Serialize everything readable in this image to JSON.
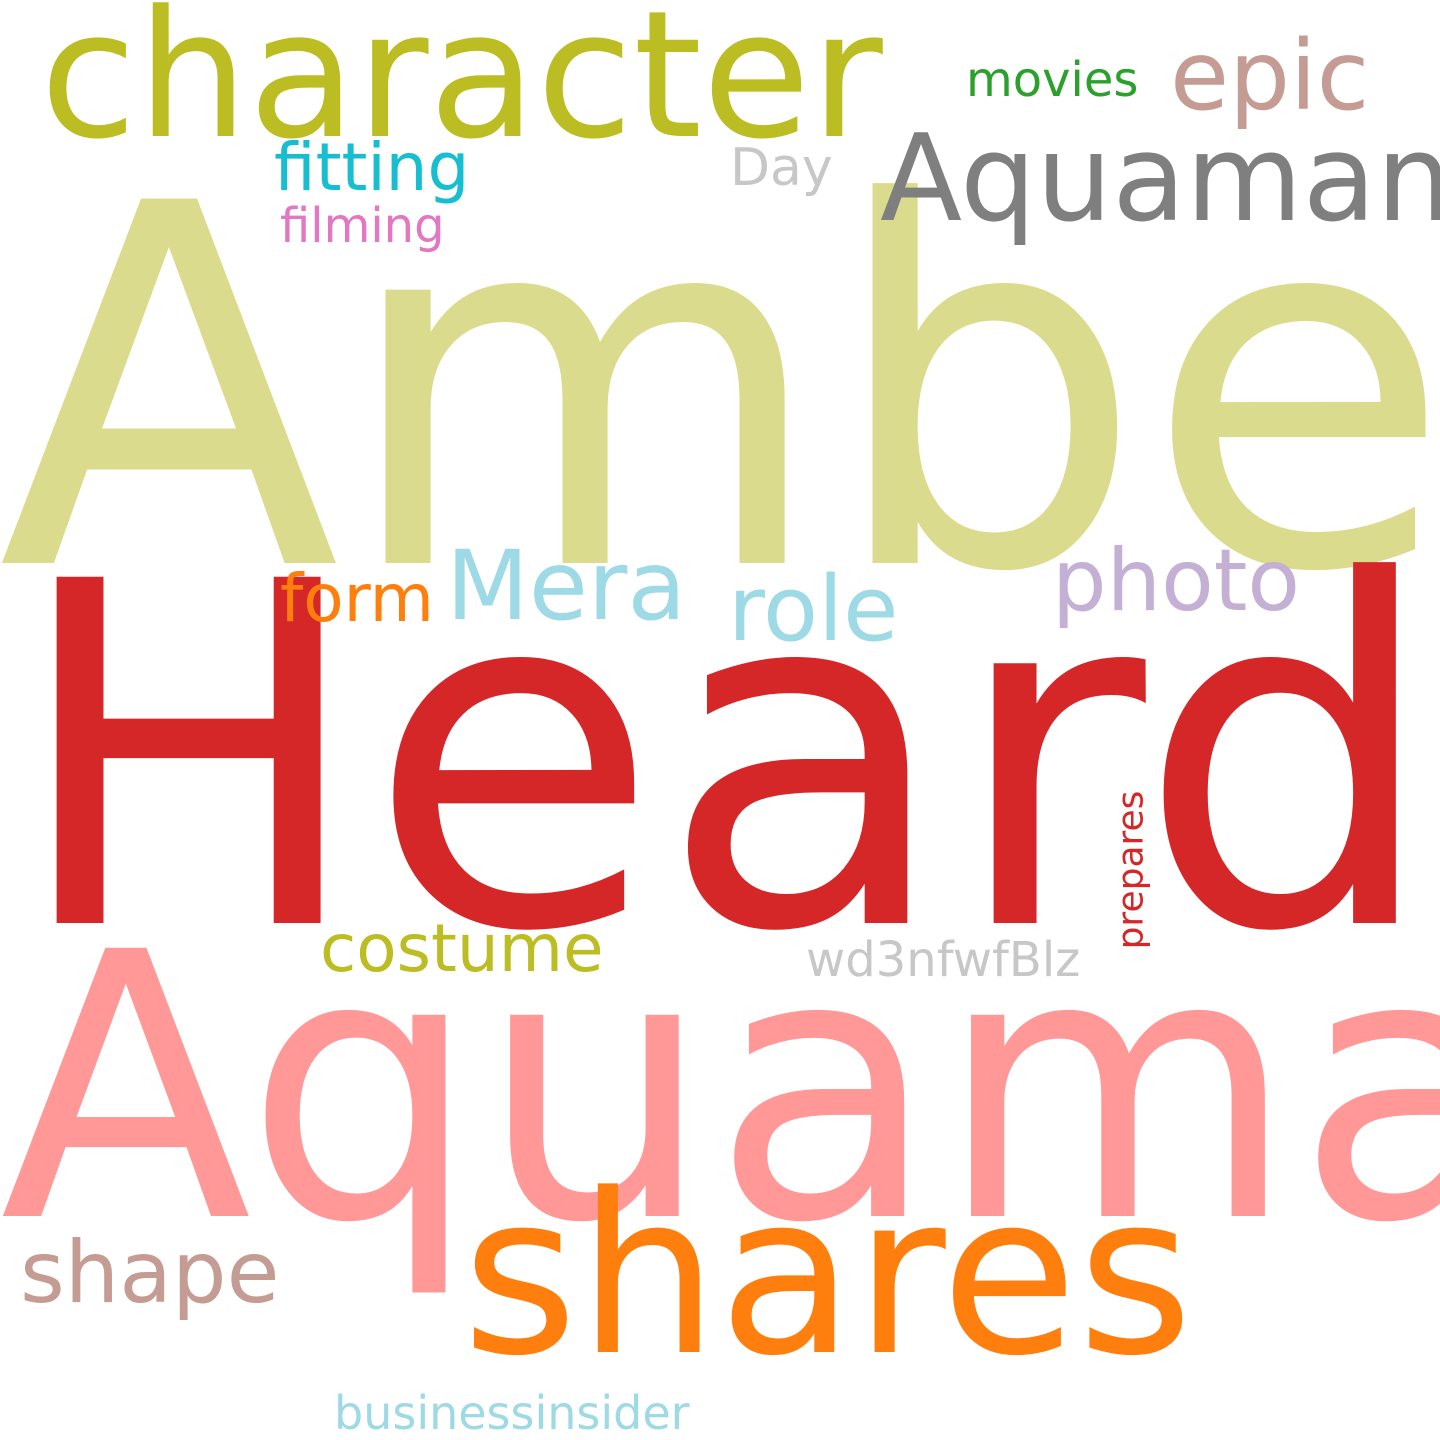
{
  "words": [
    {
      "key": "amber",
      "text": "Amber",
      "color": "#dbdb8d"
    },
    {
      "key": "heard",
      "text": "Heard",
      "color": "#d62728"
    },
    {
      "key": "aquaman",
      "text": "Aquaman",
      "color": "#ff9896"
    },
    {
      "key": "shares",
      "text": "shares",
      "color": "#ff7f0e"
    },
    {
      "key": "character",
      "text": "character",
      "color": "#bcbd22"
    },
    {
      "key": "aquaman_possessive",
      "text": "Aquaman'",
      "color": "#7f7f7f"
    },
    {
      "key": "epic",
      "text": "epic",
      "color": "#c49c94"
    },
    {
      "key": "mera",
      "text": "Mera",
      "color": "#9edae5"
    },
    {
      "key": "role",
      "text": "role",
      "color": "#9edae5"
    },
    {
      "key": "photo",
      "text": "photo",
      "color": "#c5b0d5"
    },
    {
      "key": "shape",
      "text": "shape",
      "color": "#c49c94"
    },
    {
      "key": "costume",
      "text": "costume",
      "color": "#bcbd22"
    },
    {
      "key": "form",
      "text": "form",
      "color": "#ff7f0e"
    },
    {
      "key": "fitting",
      "text": "fitting",
      "color": "#17becf"
    },
    {
      "key": "movies",
      "text": "movies",
      "color": "#2ca02c"
    },
    {
      "key": "day",
      "text": "Day",
      "color": "#c7c7c7"
    },
    {
      "key": "filming",
      "text": "filming",
      "color": "#e377c2"
    },
    {
      "key": "wd3nfwfblz",
      "text": "wd3nfwfBlz",
      "color": "#c7c7c7"
    },
    {
      "key": "businessinsider",
      "text": "businessinsider",
      "color": "#9edae5"
    },
    {
      "key": "prepares",
      "text": "prepares",
      "color": "#d62728"
    }
  ]
}
